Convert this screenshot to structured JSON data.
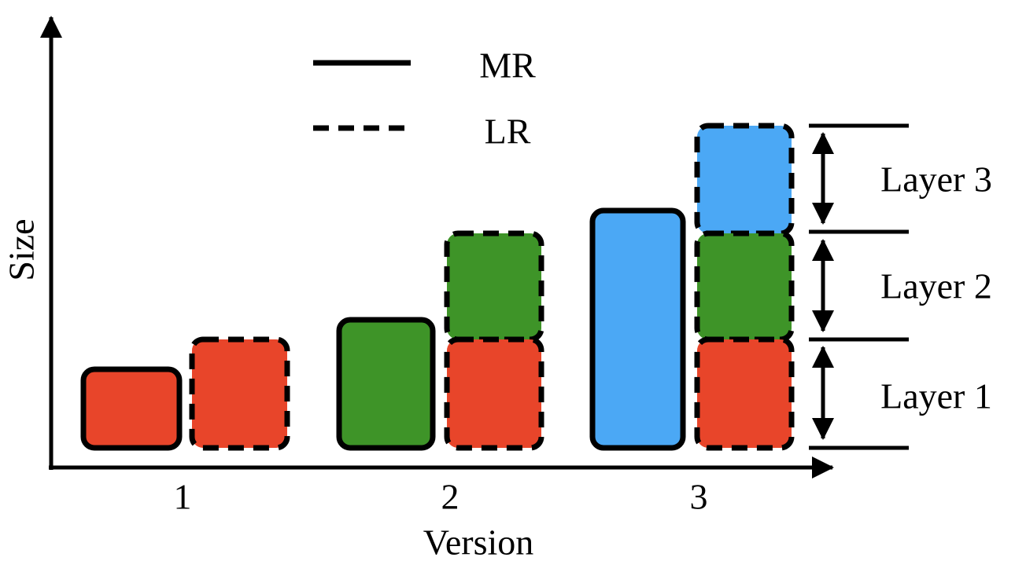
{
  "axes": {
    "y_label": "Size",
    "x_label": "Version"
  },
  "legend": {
    "solid": "MR",
    "dashed": "LR"
  },
  "versions": [
    "1",
    "2",
    "3"
  ],
  "layers": [
    "Layer 3",
    "Layer 2",
    "Layer 1"
  ]
}
